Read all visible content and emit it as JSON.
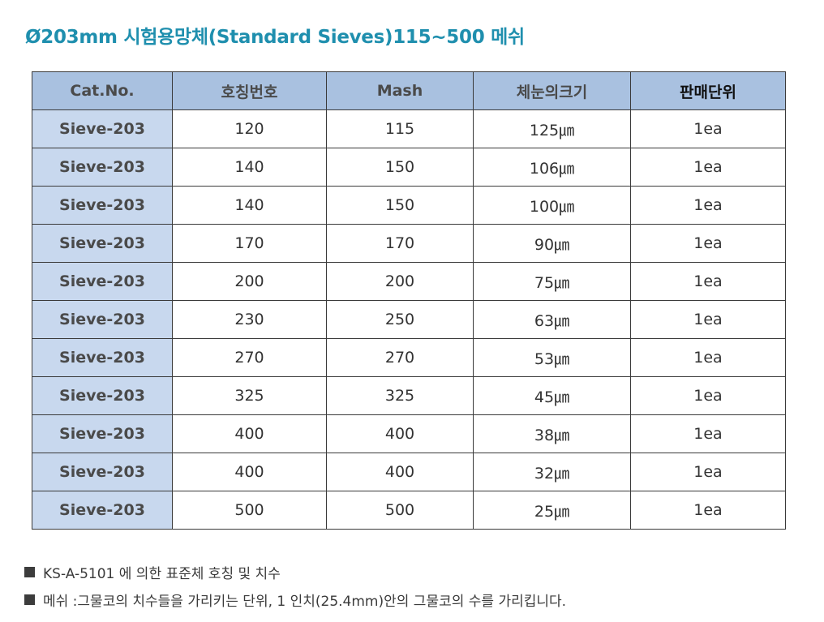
{
  "title": "Ø203mm 시험용망체(Standard Sieves)115~500 메쉬",
  "table": {
    "headers": [
      "Cat.No.",
      "호칭번호",
      "Mash",
      "체눈의크기",
      "판매단위"
    ],
    "rows": [
      [
        "Sieve-203",
        "120",
        "115",
        "125㎛",
        "1ea"
      ],
      [
        "Sieve-203",
        "140",
        "150",
        "106㎛",
        "1ea"
      ],
      [
        "Sieve-203",
        "140",
        "150",
        "100㎛",
        "1ea"
      ],
      [
        "Sieve-203",
        "170",
        "170",
        "90㎛",
        "1ea"
      ],
      [
        "Sieve-203",
        "200",
        "200",
        "75㎛",
        "1ea"
      ],
      [
        "Sieve-203",
        "230",
        "250",
        "63㎛",
        "1ea"
      ],
      [
        "Sieve-203",
        "270",
        "270",
        "53㎛",
        "1ea"
      ],
      [
        "Sieve-203",
        "325",
        "325",
        "45㎛",
        "1ea"
      ],
      [
        "Sieve-203",
        "400",
        "400",
        "38㎛",
        "1ea"
      ],
      [
        "Sieve-203",
        "400",
        "400",
        "32㎛",
        "1ea"
      ],
      [
        "Sieve-203",
        "500",
        "500",
        "25㎛",
        "1ea"
      ]
    ]
  },
  "notes": [
    "KS-A-5101 에 의한 표준체 호칭 및 치수",
    "메쉬 :그물코의 치수들을 가리키는 단위, 1 인치(25.4mm)안의 그물코의 수를 가리킵니다."
  ],
  "colors": {
    "title": "#1f8fae",
    "header_bg": "#a9c1e0",
    "cat_cell_bg": "#c8d8ee",
    "border": "#3a3a3a"
  }
}
